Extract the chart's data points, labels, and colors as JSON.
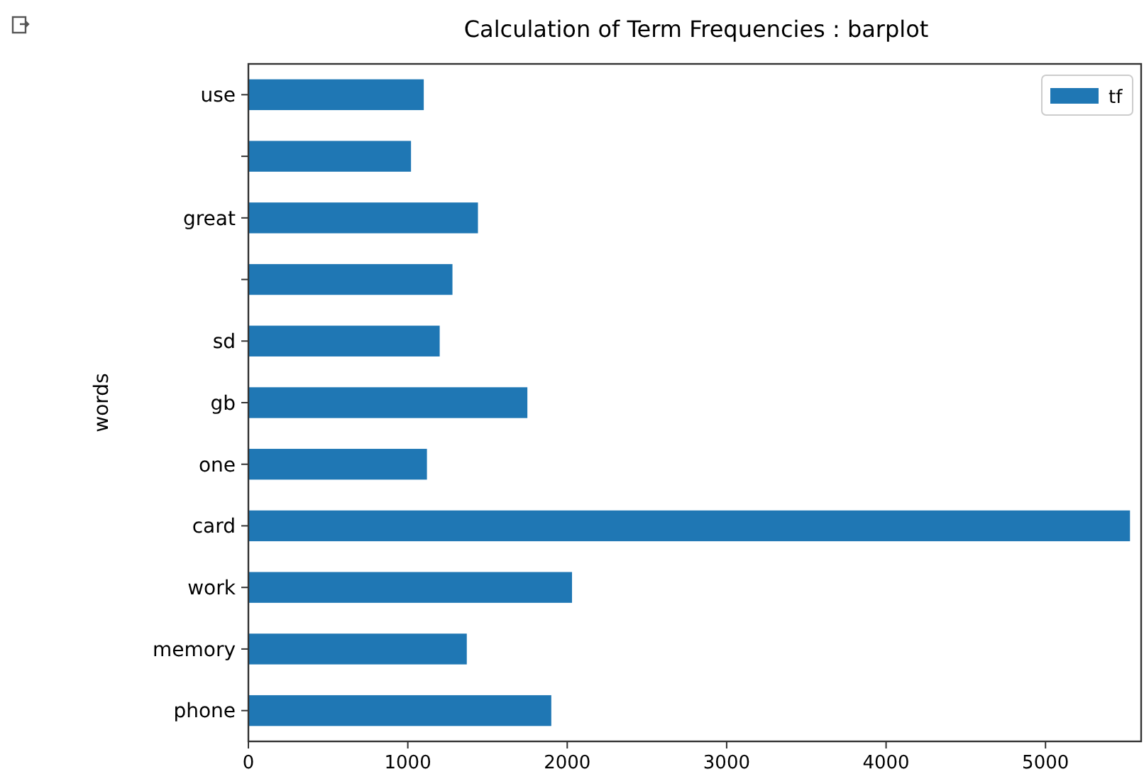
{
  "chart_data": {
    "type": "bar",
    "orientation": "horizontal",
    "title": "Calculation of Term Frequencies : barplot",
    "ylabel": "words",
    "categories": [
      "use",
      null,
      "great",
      null,
      "sd",
      "gb",
      "one",
      "card",
      "work",
      "memory",
      "phone"
    ],
    "series": [
      {
        "name": "tf",
        "color": "#1f77b4",
        "values": [
          1100,
          1020,
          1440,
          1280,
          1200,
          1750,
          1120,
          5530,
          2030,
          1370,
          1900
        ]
      }
    ],
    "xlim": [
      0,
      5600
    ],
    "xticks": [
      0,
      1000,
      2000,
      3000,
      4000,
      5000
    ],
    "legend": "top right",
    "grid": false
  }
}
